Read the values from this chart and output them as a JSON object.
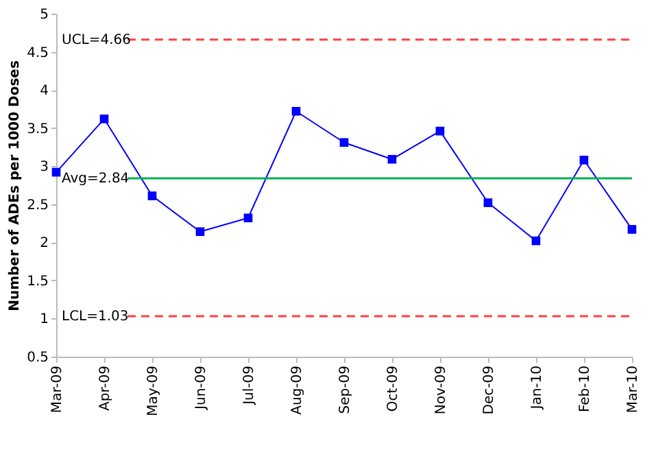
{
  "chart_data": {
    "type": "line",
    "ylabel": "Number of ADEs per 1000 Doses",
    "categories": [
      "Mar-09",
      "Apr-09",
      "May-09",
      "Jun-09",
      "Jul-09",
      "Aug-09",
      "Sep-09",
      "Oct-09",
      "Nov-09",
      "Dec-09",
      "Jan-10",
      "Feb-10",
      "Mar-10"
    ],
    "series": [
      {
        "color": "#0000ff",
        "values": [
          2.92,
          3.62,
          2.61,
          2.14,
          2.32,
          3.72,
          3.31,
          3.09,
          3.46,
          2.52,
          2.02,
          3.08,
          2.17
        ]
      }
    ],
    "ylim": [
      0.5,
      5
    ],
    "yticks": [
      0.5,
      1,
      1.5,
      2,
      2.5,
      3,
      3.5,
      4,
      4.5,
      5
    ],
    "ref_lines": [
      {
        "axis": "y",
        "value": 4.66,
        "label": "UCL=4.66",
        "color": "#ff4040",
        "line_style": "dashed"
      },
      {
        "axis": "y",
        "value": 2.84,
        "label": "Avg=2.84",
        "color": "#00b050",
        "line_style": "solid"
      },
      {
        "axis": "y",
        "value": 1.03,
        "label": "LCL=1.03",
        "color": "#ff4040",
        "line_style": "dashed"
      }
    ],
    "marker": "square",
    "grid": false
  }
}
